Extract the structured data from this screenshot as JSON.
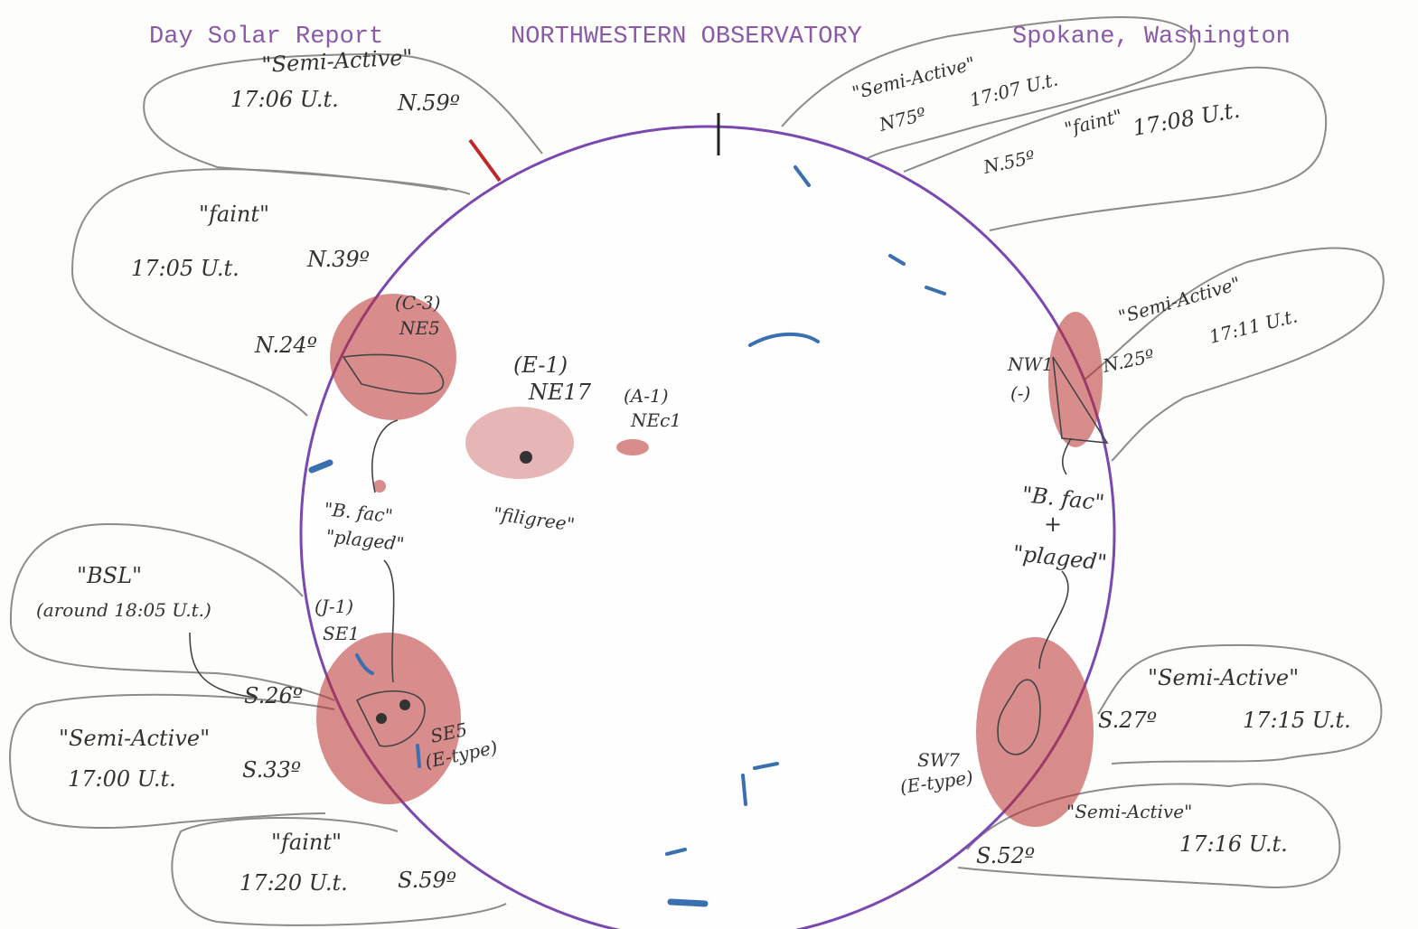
{
  "header": {
    "title": "Day Solar Report",
    "observatory": "NORTHWESTERN OBSERVATORY",
    "location": "Spokane, Washington"
  },
  "callouts": [
    {
      "status": "\"Semi-Active\"",
      "time": "17:06 U.t.",
      "latitude": "N.59º"
    },
    {
      "status": "\"faint\"",
      "time": "17:05 U.t.",
      "latitude": "N.39º",
      "latitude_2": "N.24º"
    },
    {
      "status": "\"BSL\"",
      "time": "(around 18:05 U.t.)",
      "latitude": "S.26º"
    },
    {
      "status": "\"Semi-Active\"",
      "time": "17:00 U.t.",
      "latitude": "S.33º"
    },
    {
      "status": "\"faint\"",
      "time": "17:20 U.t.",
      "latitude": "S.59º"
    },
    {
      "status": "\"Semi-Active\"",
      "time": "17:07 U.t.",
      "latitude": "N75º"
    },
    {
      "status": "\"faint\"",
      "time": "17:08 U.t.",
      "latitude": "N.55º"
    },
    {
      "status": "\"Semi-Active\"",
      "time": "17:11 U.t.",
      "latitude": "N.25º"
    },
    {
      "status": "\"Semi-Active\"",
      "time": "17:15 U.t.",
      "latitude": "S.27º"
    },
    {
      "status": "\"Semi-Active\"",
      "time": "17:16 U.t.",
      "latitude": "S.52º"
    }
  ],
  "regions": [
    {
      "id": "(C-3)",
      "code": "NE5"
    },
    {
      "id": "(E-1)",
      "code": "NE17",
      "note": "\"filigree\""
    },
    {
      "id": "(A-1)",
      "code": "NEc1"
    },
    {
      "id": "(J-1)",
      "code": "SE1"
    },
    {
      "id": "(E-type)",
      "code": "SE5"
    },
    {
      "id": "(-)",
      "code": "NW1"
    },
    {
      "id": "(E-type)",
      "code": "SW7"
    }
  ],
  "notes": {
    "left_facula": "\"B. fac\"",
    "left_plage": "\"plaged\"",
    "right_facula": "\"B. fac\"",
    "right_plus": "+",
    "right_plage": "\"plaged\""
  }
}
